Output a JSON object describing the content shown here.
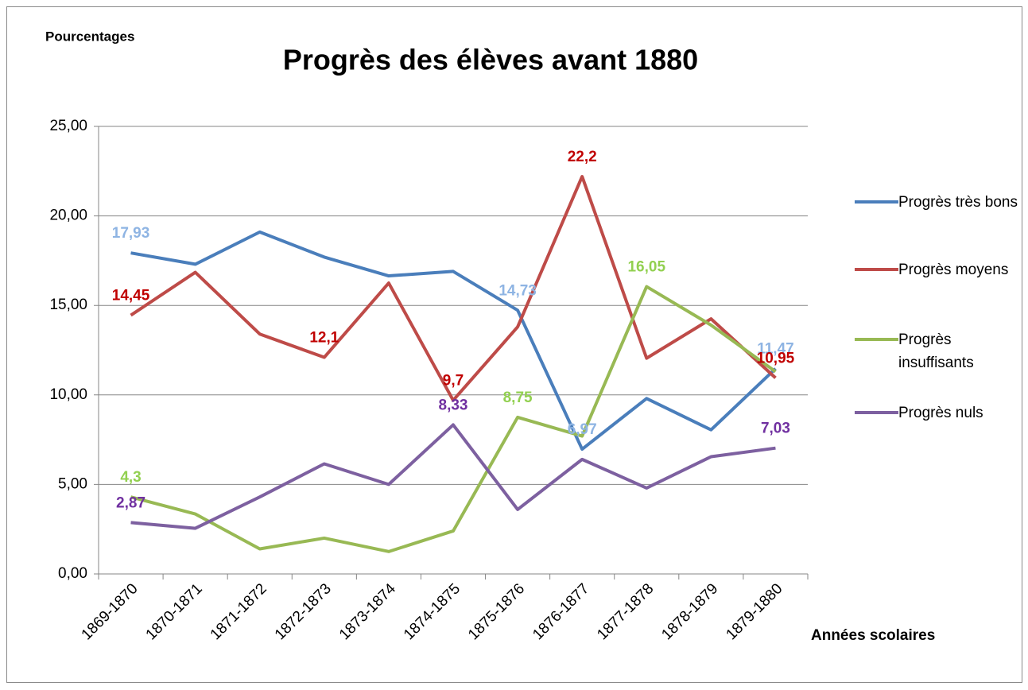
{
  "chart_data": {
    "type": "line",
    "title": "Progrès des élèves avant 1880",
    "y_label": "Pourcentages",
    "x_label": "Années scolaires",
    "categories": [
      "1869-1870",
      "1870-1871",
      "1871-1872",
      "1872-1873",
      "1873-1874",
      "1874-1875",
      "1875-1876",
      "1876-1877",
      "1877-1878",
      "1878-1879",
      "1879-1880"
    ],
    "ylim": [
      0,
      25
    ],
    "yticks": [
      {
        "value": 0,
        "label": "0,00"
      },
      {
        "value": 5,
        "label": "5,00"
      },
      {
        "value": 10,
        "label": "10,00"
      },
      {
        "value": 15,
        "label": "15,00"
      },
      {
        "value": 20,
        "label": "20,00"
      },
      {
        "value": 25,
        "label": "25,00"
      }
    ],
    "grid": true,
    "legend": "right",
    "series": [
      {
        "name": "Progrès très bons",
        "color": "#4a7ebb",
        "label_color": "#8eb4e3",
        "values": [
          17.93,
          17.3,
          19.1,
          17.7,
          16.65,
          16.9,
          14.73,
          6.97,
          9.8,
          8.05,
          11.47
        ],
        "value_labels": [
          "17,93",
          null,
          null,
          null,
          null,
          null,
          "14,73",
          "6,97",
          null,
          null,
          "11,47"
        ]
      },
      {
        "name": "Progrès moyens",
        "color": "#be4b48",
        "label_color": "#c00000",
        "values": [
          14.45,
          16.85,
          13.4,
          12.1,
          16.25,
          9.7,
          13.8,
          22.2,
          12.05,
          14.25,
          10.95
        ],
        "value_labels": [
          "14,45",
          null,
          null,
          "12,1",
          null,
          "9,7",
          null,
          "22,2",
          null,
          null,
          "10,95"
        ]
      },
      {
        "name": "Progrès insuffisants",
        "color": "#98b954",
        "label_color": "#92d050",
        "values": [
          4.3,
          3.35,
          1.4,
          2.0,
          1.25,
          2.4,
          8.75,
          7.7,
          16.05,
          13.9,
          11.3
        ],
        "value_labels": [
          "4,3",
          null,
          null,
          null,
          null,
          null,
          "8,75",
          null,
          "16,05",
          null,
          null
        ]
      },
      {
        "name": "Progrès nuls",
        "color": "#7d60a0",
        "label_color": "#7030a0",
        "values": [
          2.87,
          2.55,
          4.3,
          6.15,
          5.0,
          8.33,
          3.6,
          6.4,
          4.8,
          6.55,
          7.03
        ],
        "value_labels": [
          "2,87",
          null,
          null,
          null,
          null,
          "8,33",
          null,
          null,
          null,
          null,
          "7,03"
        ]
      }
    ]
  }
}
